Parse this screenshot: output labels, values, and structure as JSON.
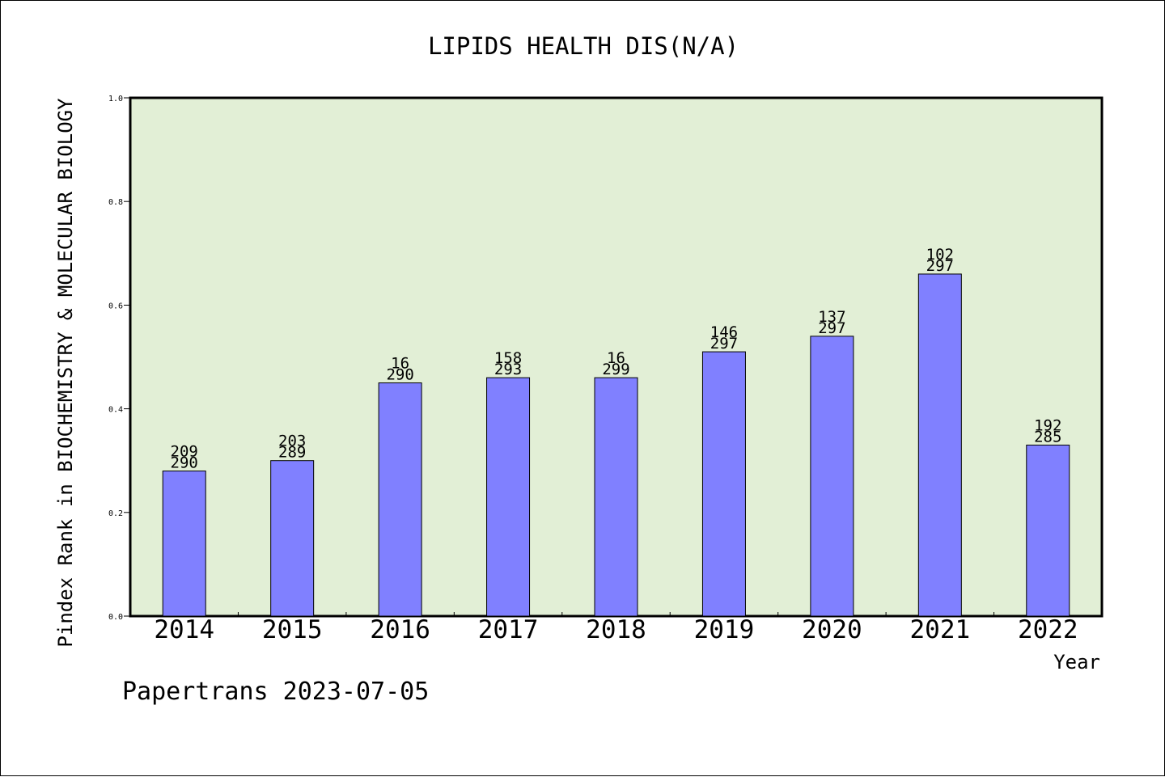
{
  "chart_data": {
    "type": "bar",
    "title": "LIPIDS HEALTH DIS(N/A)",
    "xlabel": "Year",
    "ylabel": "Pindex Rank in BIOCHEMISTRY & MOLECULAR BIOLOGY",
    "footer": "Papertrans 2023-07-05",
    "categories": [
      "2014",
      "2015",
      "2016",
      "2017",
      "2018",
      "2019",
      "2020",
      "2021",
      "2022"
    ],
    "values": [
      0.28,
      0.3,
      0.45,
      0.46,
      0.46,
      0.51,
      0.54,
      0.66,
      0.33
    ],
    "rank_labels": [
      [
        "209",
        "290"
      ],
      [
        "203",
        "289"
      ],
      [
        "16",
        "290"
      ],
      [
        "158",
        "293"
      ],
      [
        "16",
        "299"
      ],
      [
        "146",
        "297"
      ],
      [
        "137",
        "297"
      ],
      [
        "102",
        "297"
      ],
      [
        "192",
        "285"
      ]
    ],
    "ylim": [
      0,
      1.0
    ],
    "yticks": [
      "0.0",
      "0.2",
      "0.4",
      "0.6",
      "0.8",
      "1.0"
    ],
    "grid": false,
    "colors": {
      "plot_background": "#e2efd6",
      "bar_fill": "#8080ff",
      "bar_stroke": "#000000"
    }
  }
}
